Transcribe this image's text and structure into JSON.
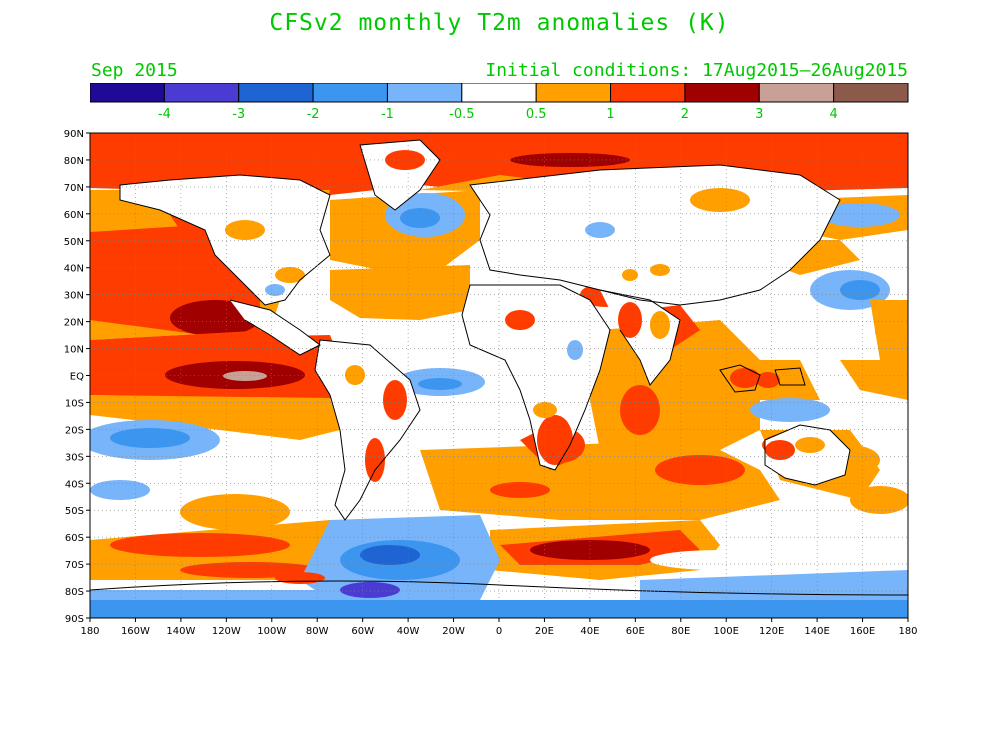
{
  "title": "CFSv2 monthly T2m anomalies (K)",
  "valid_month": "Sep 2015",
  "initial_conditions": "Initial conditions: 17Aug2015–26Aug2015",
  "colorbar": {
    "colors": [
      "#1e0a96",
      "#4a3cd2",
      "#1e64d2",
      "#3c96f0",
      "#78b4fa",
      "#ffffff",
      "#ffa000",
      "#ff3c00",
      "#a00000",
      "#c8a096",
      "#8c5a4b"
    ],
    "labels": [
      "-4",
      "-3",
      "-2",
      "-1",
      "-0.5",
      "0.5",
      "1",
      "2",
      "3",
      "4"
    ],
    "label_color": "#00c800"
  },
  "map": {
    "lat_labels": [
      "90N",
      "80N",
      "70N",
      "60N",
      "50N",
      "40N",
      "30N",
      "20N",
      "10N",
      "EQ",
      "10S",
      "20S",
      "30S",
      "40S",
      "50S",
      "60S",
      "70S",
      "80S",
      "90S"
    ],
    "lon_labels": [
      "180",
      "160W",
      "140W",
      "120W",
      "100W",
      "80W",
      "60W",
      "40W",
      "20W",
      "0",
      "20E",
      "40E",
      "60E",
      "80E",
      "100E",
      "120E",
      "140E",
      "160E",
      "180"
    ]
  }
}
